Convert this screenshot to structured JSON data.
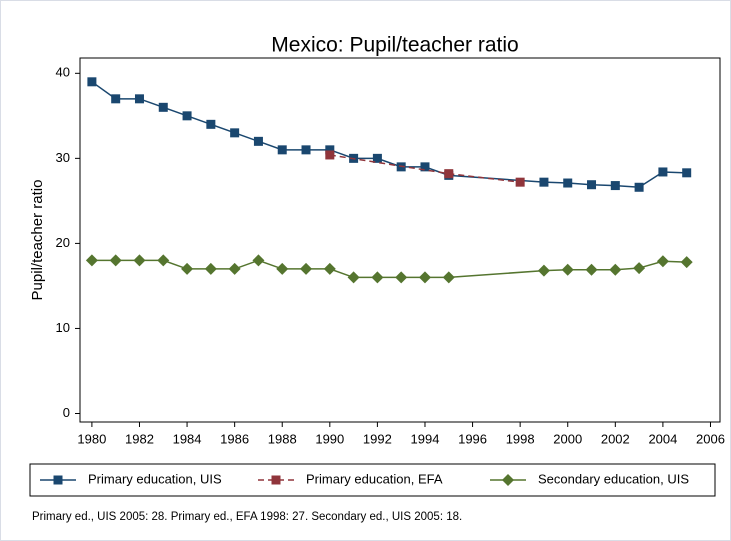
{
  "chart_data": {
    "type": "line",
    "title": "Mexico: Pupil/teacher ratio",
    "ylabel": "Pupil/teacher ratio",
    "note": "Primary ed., UIS 2005: 28. Primary ed., EFA 1998: 27. Secondary ed., UIS 2005: 18.",
    "xlim": [
      1979.5,
      2006.4
    ],
    "xticks": [
      1980,
      1982,
      1984,
      1986,
      1988,
      1990,
      1992,
      1994,
      1996,
      1998,
      2000,
      2002,
      2004,
      2006
    ],
    "ylim": [
      -1,
      41.8
    ],
    "yticks": [
      0,
      10,
      20,
      30,
      40
    ],
    "grid": false,
    "legend": "bottom",
    "series": [
      {
        "name": "Primary education, UIS",
        "color": "#1a476f",
        "marker": "square",
        "linestyle": "solid",
        "x": [
          1980,
          1981,
          1982,
          1983,
          1984,
          1985,
          1986,
          1987,
          1988,
          1989,
          1990,
          1991,
          1992,
          1993,
          1994,
          1995,
          1999,
          2000,
          2001,
          2002,
          2003,
          2004,
          2005
        ],
        "values": [
          39,
          37,
          37,
          36,
          35,
          34,
          33,
          32,
          31,
          31,
          31,
          30,
          30,
          29,
          29,
          28,
          27.2,
          27.1,
          26.9,
          26.8,
          26.6,
          28.4,
          28.3
        ]
      },
      {
        "name": "Primary education, EFA",
        "color": "#90353b",
        "marker": "square",
        "linestyle": "dash",
        "x": [
          1990,
          1995,
          1998
        ],
        "values": [
          30.4,
          28.2,
          27.2
        ]
      },
      {
        "name": "Secondary education, UIS",
        "color": "#55752f",
        "marker": "diamond",
        "linestyle": "solid",
        "x": [
          1980,
          1981,
          1982,
          1983,
          1984,
          1985,
          1986,
          1987,
          1988,
          1989,
          1990,
          1991,
          1992,
          1993,
          1994,
          1995,
          1999,
          2000,
          2001,
          2002,
          2003,
          2004,
          2005
        ],
        "values": [
          18,
          18,
          18,
          18,
          17,
          17,
          17,
          18,
          17,
          17,
          17,
          16,
          16,
          16,
          16,
          16,
          16.8,
          16.9,
          16.9,
          16.9,
          17.1,
          17.9,
          17.8
        ]
      }
    ]
  }
}
